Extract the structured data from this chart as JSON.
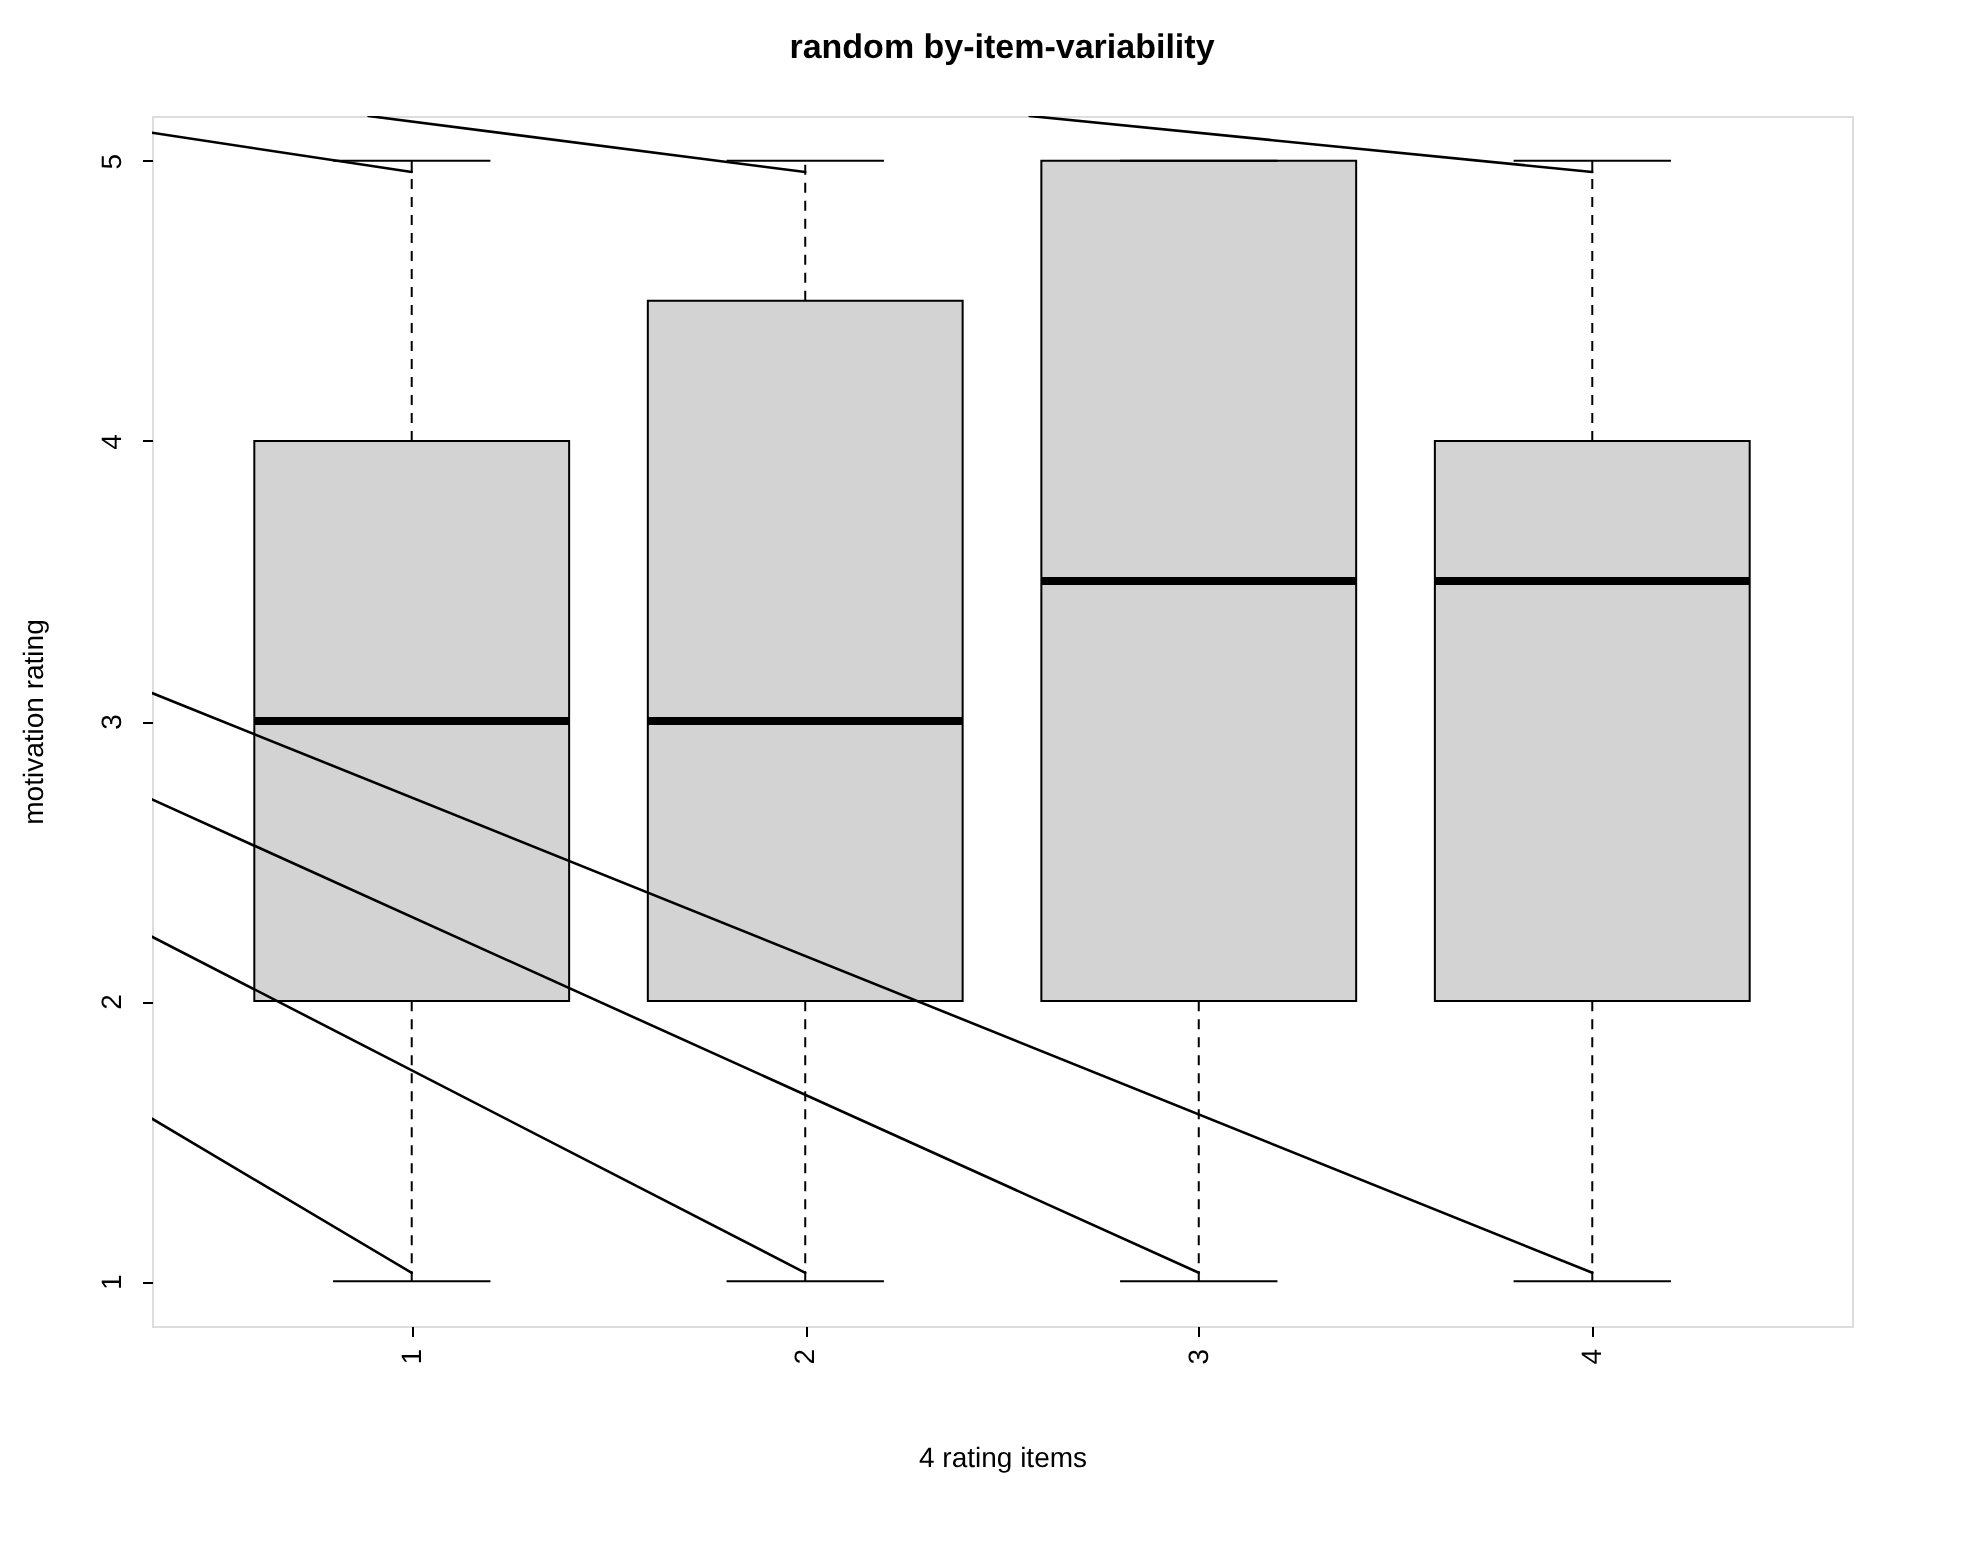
{
  "chart_data": {
    "type": "box",
    "title": "random by-item-variability",
    "xlabel": "4 rating items",
    "ylabel": "motivation rating",
    "categories": [
      "1",
      "2",
      "3",
      "4"
    ],
    "color": "#d3d3d3",
    "boxes": [
      {
        "low": 1,
        "q1": 2,
        "median": 3,
        "q3": 4,
        "high": 5
      },
      {
        "low": 1,
        "q1": 2,
        "median": 3,
        "q3": 4.5,
        "high": 5
      },
      {
        "low": 1,
        "q1": 2,
        "median": 3.5,
        "q3": 5,
        "high": 5
      },
      {
        "low": 1,
        "q1": 2,
        "median": 3.5,
        "q3": 4,
        "high": 5
      }
    ],
    "ylim": [
      0.84,
      5.16
    ],
    "yticks": [
      1,
      2,
      3,
      4,
      5
    ]
  }
}
